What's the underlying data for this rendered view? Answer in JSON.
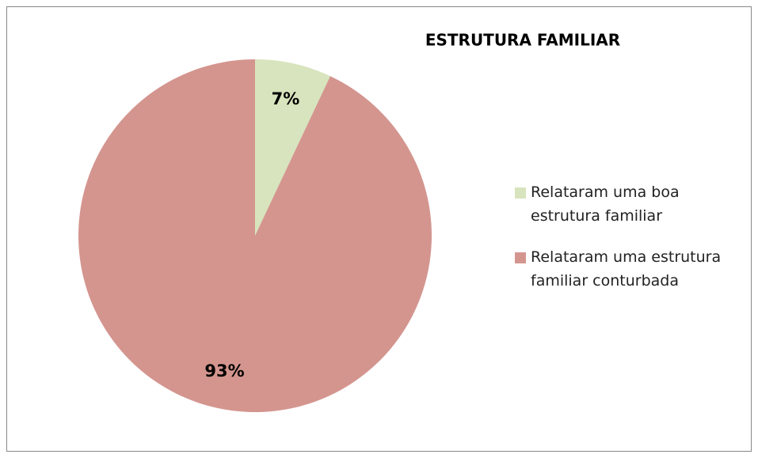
{
  "chart_data": {
    "type": "pie",
    "title": "ESTRUTURA FAMILIAR",
    "categories": [
      "Relataram uma boa estrutura familiar",
      "Relataram uma estrutura familiar conturbada"
    ],
    "values": [
      7,
      93
    ],
    "value_labels": [
      "7%",
      "93%"
    ],
    "colors": [
      "#d7e4bd",
      "#d4958f"
    ],
    "legend": "right"
  }
}
